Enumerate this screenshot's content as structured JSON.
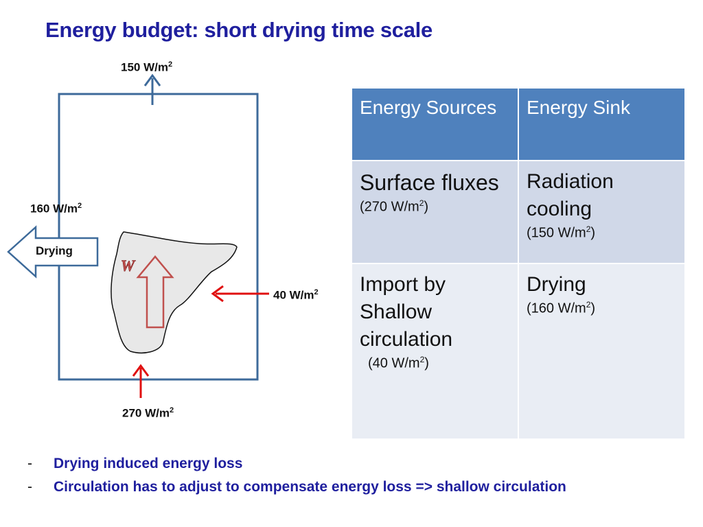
{
  "title": "Energy budget: short drying time scale",
  "diagram": {
    "top_flux": "150 W/m",
    "left_flux": "160 W/m",
    "right_flux": "40 W/m",
    "bottom_flux": "270 W/m",
    "unit_exponent": "2",
    "drying_arrow_label": "Drying",
    "cloud_letter": "W",
    "colors": {
      "box": "#3d6a9a",
      "red_arrow": "#e01010",
      "cloud_fill": "#e8e8e8",
      "updraft": "#c0504d"
    }
  },
  "table": {
    "headers": [
      "Energy Sources",
      "Energy Sink"
    ],
    "rows": [
      {
        "source_main": "Surface fluxes",
        "source_value": "(270 W/m",
        "source_close": ")",
        "sink_main": "Radiation cooling",
        "sink_value": "(150 W/m",
        "sink_close": ")"
      },
      {
        "source_main": "Import by Shallow circulation",
        "source_value": "(40 W/m",
        "source_close": ")",
        "sink_main": "Drying",
        "sink_value": "(160 W/m",
        "sink_close": ")"
      }
    ],
    "exponent": "2"
  },
  "bullets": {
    "marker": "-",
    "items": [
      "Drying induced energy loss",
      "Circulation has to adjust to compensate energy loss => shallow circulation"
    ]
  }
}
